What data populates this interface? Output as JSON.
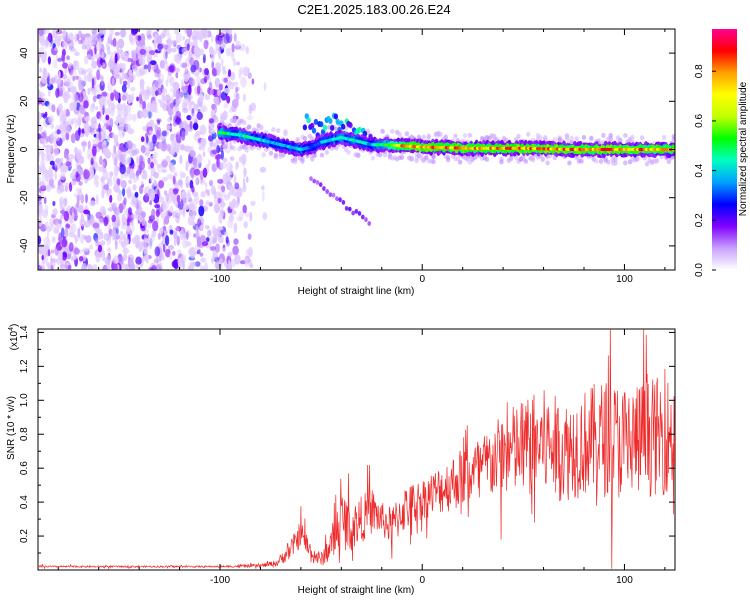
{
  "title": "C2E1.2025.183.00.26.E24",
  "chart_data": [
    {
      "type": "heatmap",
      "xlabel": "Height of straight line (km)",
      "ylabel": "Frequency (Hz)",
      "xlim": [
        -190,
        125
      ],
      "ylim": [
        -50,
        50
      ],
      "xticks": [
        -100,
        0,
        100
      ],
      "yticks": [
        -40,
        -20,
        0,
        20,
        40
      ],
      "colorbar": {
        "label": "Normalized spectral amplitude",
        "range": [
          0,
          0.97
        ],
        "ticks": [
          "0.0",
          "0.2",
          "0.4",
          "0.6",
          "0.8"
        ],
        "tick_values": [
          0.0,
          0.2,
          0.4,
          0.6,
          0.8
        ],
        "colormap": [
          "#ffffff",
          "#c8a0ff",
          "#8000ff",
          "#0000ff",
          "#00a0ff",
          "#00ffc0",
          "#00ff00",
          "#c0ff00",
          "#ffff00",
          "#ffa000",
          "#ff0000",
          "#ff0090"
        ]
      },
      "features": {
        "noise_region_x": [
          -190,
          -82
        ],
        "main_band": {
          "x": [
            -100,
            -90,
            -80,
            -70,
            -60,
            -55,
            -50,
            -45,
            -40,
            -35,
            -30,
            -25,
            -20,
            -10,
            0,
            25,
            50,
            75,
            100,
            125
          ],
          "freq_hz": [
            7,
            6,
            4,
            2,
            0,
            1,
            3,
            4,
            5,
            4,
            3,
            2,
            2,
            1.5,
            1,
            0.5,
            0.5,
            0,
            0,
            0
          ],
          "amplitude": [
            0.55,
            0.5,
            0.45,
            0.4,
            0.45,
            0.35,
            0.4,
            0.45,
            0.5,
            0.5,
            0.45,
            0.4,
            0.55,
            0.85,
            0.9,
            0.9,
            0.9,
            0.9,
            0.9,
            0.85
          ]
        },
        "secondary_track": {
          "x": [
            -55,
            -50,
            -45,
            -40,
            -35,
            -30,
            -25
          ],
          "freq_hz": [
            -12,
            -15,
            -18,
            -22,
            -25,
            -28,
            -31
          ]
        },
        "upper_branch": {
          "x": [
            -58,
            -55,
            -50,
            -45,
            -40,
            -35,
            -30,
            -25
          ],
          "freq_hz": [
            12,
            10,
            8,
            12,
            10,
            8,
            6,
            4
          ]
        }
      }
    },
    {
      "type": "line",
      "xlabel": "Height of straight line (km)",
      "ylabel": "SNR (10 * v/v)",
      "yscale_label": "(x10",
      "yscale_exp": "4",
      "yscale_close": ")",
      "xlim": [
        -190,
        125
      ],
      "ylim": [
        0,
        1.42
      ],
      "xticks": [
        -100,
        0,
        100
      ],
      "yticks": [
        "0.2",
        "0.4",
        "0.6",
        "0.8",
        "1.0",
        "1.2",
        "1.4"
      ],
      "ytick_values": [
        0.2,
        0.4,
        0.6,
        0.8,
        1.0,
        1.2,
        1.4
      ],
      "color": "#ee2a2a",
      "series": [
        {
          "x": [
            -190,
            -140,
            -100,
            -80,
            -72,
            -65,
            -60,
            -55,
            -50,
            -45,
            -40,
            -35,
            -30,
            -25,
            -20,
            -15,
            -10,
            0,
            10,
            20,
            30,
            40,
            50,
            60,
            70,
            80,
            90,
            100,
            110,
            125
          ],
          "y_mean": [
            0.02,
            0.02,
            0.02,
            0.025,
            0.04,
            0.12,
            0.22,
            0.1,
            0.06,
            0.15,
            0.3,
            0.25,
            0.3,
            0.35,
            0.3,
            0.25,
            0.35,
            0.42,
            0.48,
            0.55,
            0.6,
            0.68,
            0.72,
            0.75,
            0.7,
            0.75,
            0.78,
            0.75,
            0.78,
            0.8
          ],
          "y_spread": [
            0.005,
            0.005,
            0.005,
            0.01,
            0.02,
            0.06,
            0.08,
            0.06,
            0.04,
            0.1,
            0.18,
            0.14,
            0.14,
            0.14,
            0.1,
            0.12,
            0.14,
            0.12,
            0.15,
            0.18,
            0.2,
            0.25,
            0.3,
            0.32,
            0.3,
            0.32,
            0.35,
            0.35,
            0.35,
            0.35
          ]
        }
      ]
    }
  ]
}
